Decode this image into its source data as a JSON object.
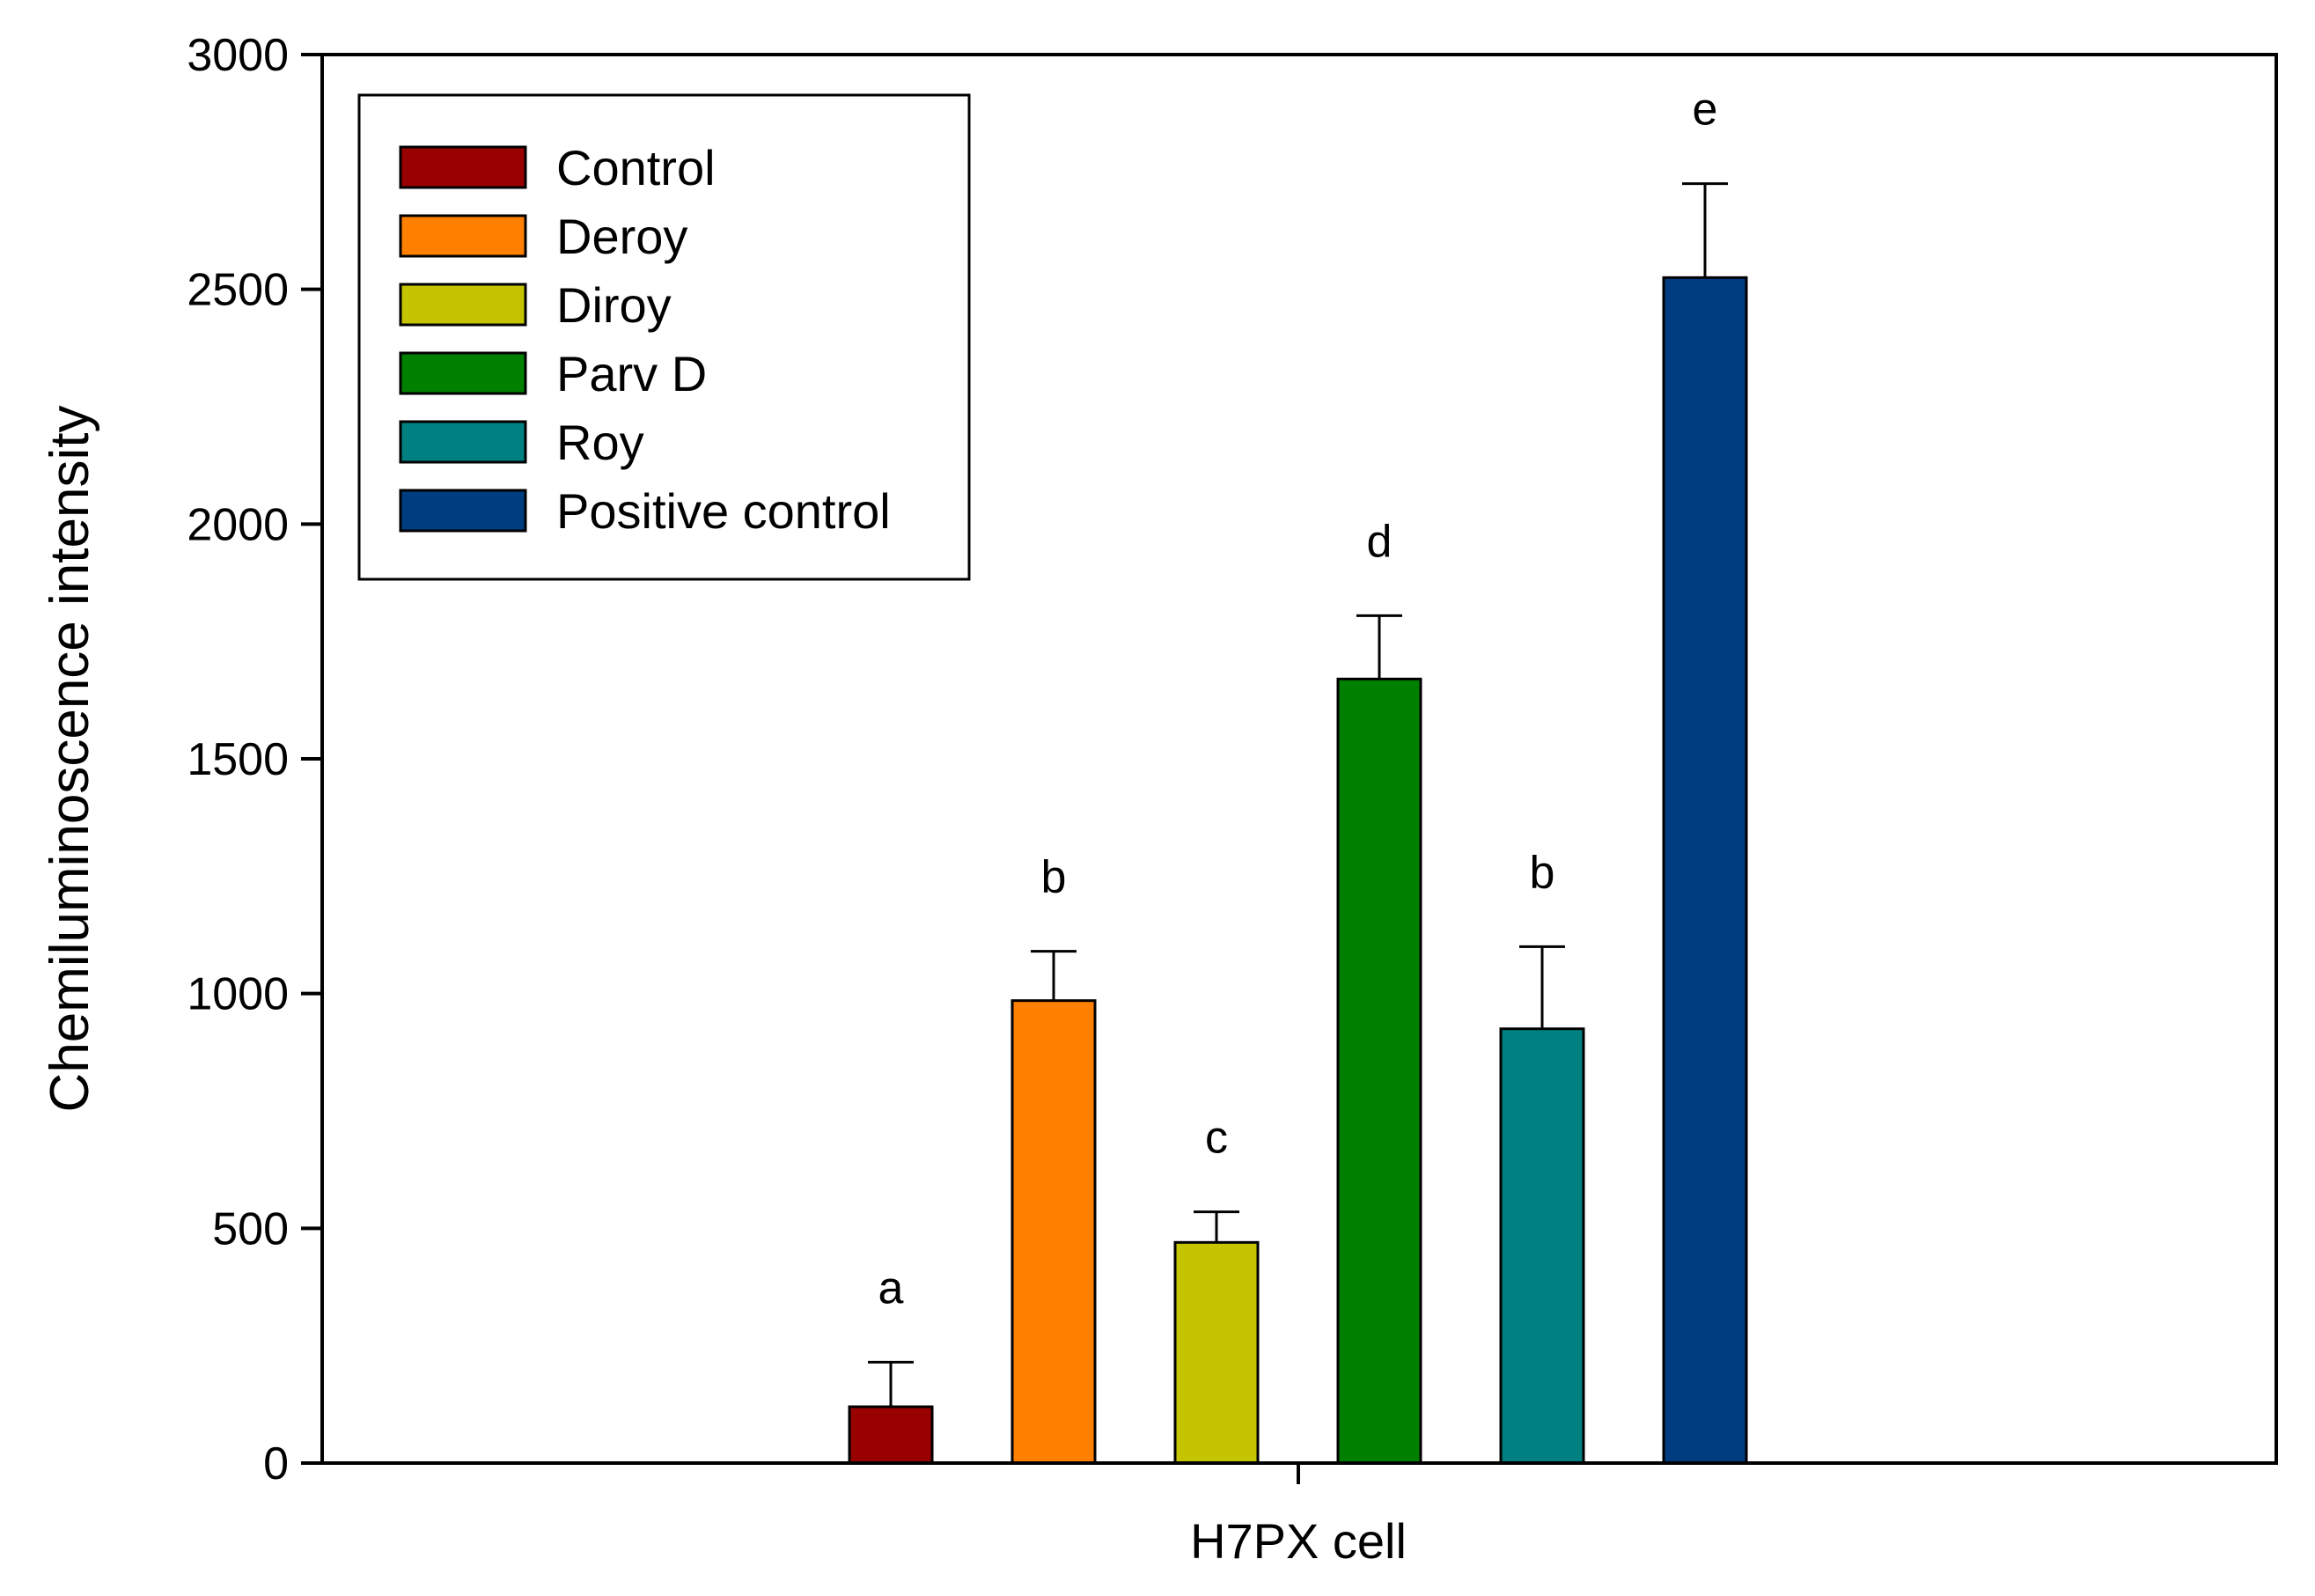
{
  "chart_data": {
    "type": "bar",
    "title": "",
    "xlabel": "",
    "ylabel": "Chemiluminoscence intensity",
    "group": "H7PX cell",
    "ylim": [
      0,
      3000
    ],
    "yticks": [
      0,
      500,
      1000,
      1500,
      2000,
      2500,
      3000
    ],
    "grid": false,
    "legend_position": "top-left",
    "series": [
      {
        "name": "Control",
        "value": 120,
        "error": 95,
        "label": "a",
        "color": "#990000"
      },
      {
        "name": "Deroy",
        "value": 985,
        "error": 105,
        "label": "b",
        "color": "#ff8000"
      },
      {
        "name": "Diroy",
        "value": 470,
        "error": 65,
        "label": "c",
        "color": "#c4c400"
      },
      {
        "name": "Parv D",
        "value": 1670,
        "error": 135,
        "label": "d",
        "color": "#008000"
      },
      {
        "name": "Roy",
        "value": 925,
        "error": 175,
        "label": "b",
        "color": "#008080"
      },
      {
        "name": "Positive control",
        "value": 2525,
        "error": 200,
        "label": "e",
        "color": "#003d80"
      }
    ]
  }
}
